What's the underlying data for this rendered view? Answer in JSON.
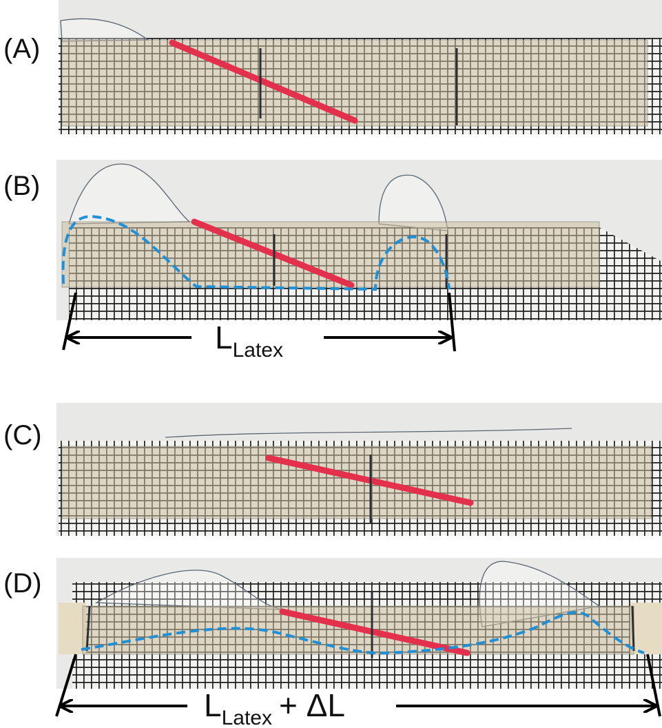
{
  "panels": [
    {
      "label": "(A)"
    },
    {
      "label": "(B)",
      "dimension": {
        "symbol": "L",
        "subscript": "Latex"
      }
    },
    {
      "label": "(C)"
    },
    {
      "label": "(D)",
      "dimension": {
        "symbol": "L",
        "subscript": "Latex",
        "suffix": "+ ΔL"
      }
    }
  ]
}
